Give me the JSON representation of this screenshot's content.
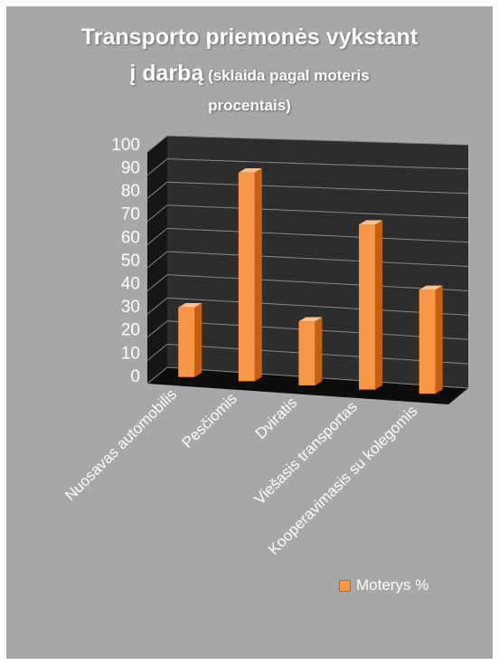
{
  "chart_data": {
    "type": "bar",
    "title_line1": "Transporto priemonės vykstant",
    "title_line2_main": "į darbą",
    "title_line2_sub": " (sklaida pagal moteris",
    "title_line3": "procentais)",
    "categories": [
      "Nuosavas automobilis",
      "Pesčiomis",
      "Dviratis",
      "Viešasis transportas",
      "Kooperavimasis su kolegomis"
    ],
    "series": [
      {
        "name": "Moterys %",
        "values": [
          30,
          89,
          27,
          69,
          43
        ],
        "color": "#f79646"
      }
    ],
    "yticks": [
      "0",
      "10",
      "20",
      "30",
      "40",
      "50",
      "60",
      "70",
      "80",
      "90",
      "100"
    ],
    "ylim": [
      0,
      100
    ],
    "grid": true,
    "legend_position": "bottom-right"
  }
}
